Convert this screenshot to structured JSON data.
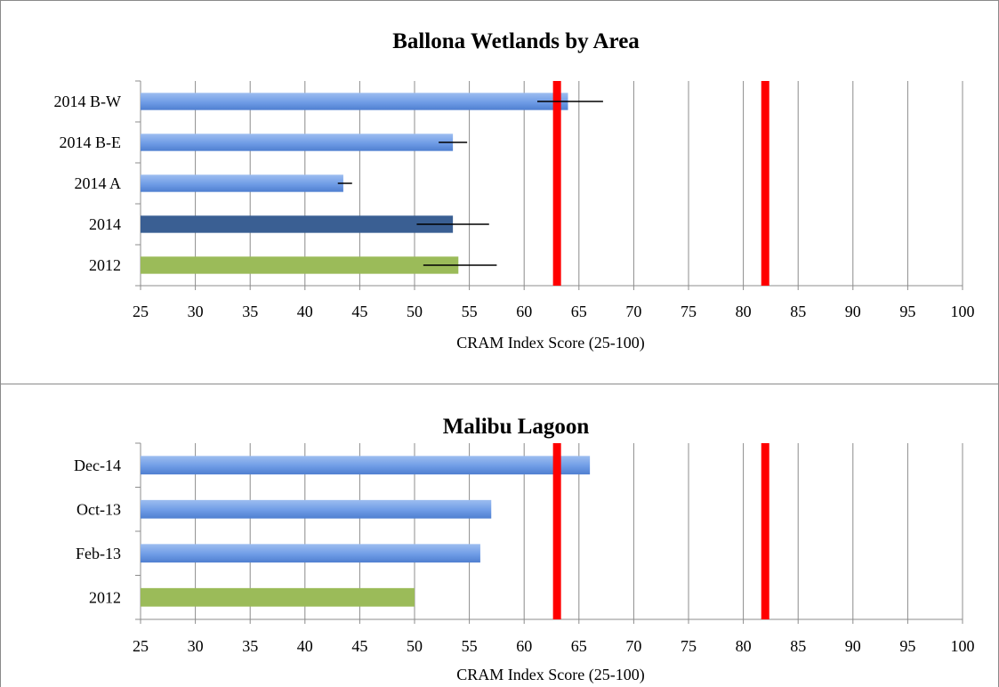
{
  "chart_data": [
    {
      "type": "bar",
      "orientation": "horizontal",
      "title": "Ballona Wetlands by Area",
      "xlabel": "CRAM Index Score (25-100)",
      "ylabel": "",
      "xlim": [
        25,
        100
      ],
      "xticks": [
        "25",
        "30",
        "35",
        "40",
        "45",
        "50",
        "55",
        "60",
        "65",
        "70",
        "75",
        "80",
        "85",
        "90",
        "95",
        "100"
      ],
      "categories": [
        "2014 B-W",
        "2014 B-E",
        "2014 A",
        "2014",
        "2012"
      ],
      "values": [
        64,
        53.5,
        43.5,
        53.5,
        54
      ],
      "error_low": [
        61.2,
        52.2,
        43.0,
        50.2,
        50.8
      ],
      "error_high": [
        67.2,
        54.8,
        44.3,
        56.8,
        57.5
      ],
      "bar_colors": [
        "#6f9ce6",
        "#6f9ce6",
        "#6f9ce6",
        "#3a5f93",
        "#9bbb59"
      ],
      "reference_lines": [
        63,
        82
      ],
      "reference_color": "#ff0000",
      "grid": true
    },
    {
      "type": "bar",
      "orientation": "horizontal",
      "title": "Malibu Lagoon",
      "xlabel": "CRAM Index Score (25-100)",
      "ylabel": "",
      "xlim": [
        25,
        100
      ],
      "xticks": [
        "25",
        "30",
        "35",
        "40",
        "45",
        "50",
        "55",
        "60",
        "65",
        "70",
        "75",
        "80",
        "85",
        "90",
        "95",
        "100"
      ],
      "categories": [
        "Dec-14",
        "Oct-13",
        "Feb-13",
        "2012"
      ],
      "values": [
        66,
        57,
        56,
        50
      ],
      "bar_colors": [
        "#6f9ce6",
        "#6f9ce6",
        "#6f9ce6",
        "#9bbb59"
      ],
      "reference_lines": [
        63,
        82
      ],
      "reference_color": "#ff0000",
      "grid": true
    }
  ]
}
